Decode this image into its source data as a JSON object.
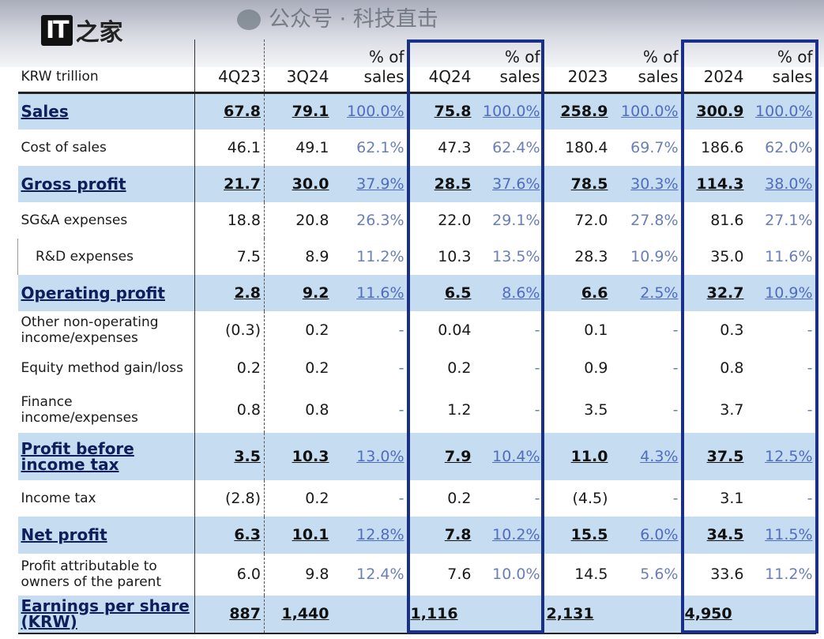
{
  "logo": {
    "text_latin": "IT",
    "text_cjk": "之家"
  },
  "unit_label": "KRW trillion",
  "columns": [
    "4Q23",
    "3Q24",
    "% of sales",
    "4Q24",
    "% of sales",
    "2023",
    "% of sales",
    "2024",
    "% of sales"
  ],
  "rows": [
    {
      "label": "Sales",
      "hl": true,
      "v": [
        "67.8",
        "79.1",
        "100.0%",
        "75.8",
        "100.0%",
        "258.9",
        "100.0%",
        "300.9",
        "100.0%"
      ]
    },
    {
      "label": "Cost of sales",
      "v": [
        "46.1",
        "49.1",
        "62.1%",
        "47.3",
        "62.4%",
        "180.4",
        "69.7%",
        "186.6",
        "62.0%"
      ]
    },
    {
      "label": "Gross profit",
      "hl": true,
      "v": [
        "21.7",
        "30.0",
        "37.9%",
        "28.5",
        "37.6%",
        "78.5",
        "30.3%",
        "114.3",
        "38.0%"
      ]
    },
    {
      "label": "SG&A expenses",
      "v": [
        "18.8",
        "20.8",
        "26.3%",
        "22.0",
        "29.1%",
        "72.0",
        "27.8%",
        "81.6",
        "27.1%"
      ]
    },
    {
      "label": "R&D expenses",
      "indent": true,
      "v": [
        "7.5",
        "8.9",
        "11.2%",
        "10.3",
        "13.5%",
        "28.3",
        "10.9%",
        "35.0",
        "11.6%"
      ]
    },
    {
      "label": "Operating profit",
      "hl": true,
      "v": [
        "2.8",
        "9.2",
        "11.6%",
        "6.5",
        "8.6%",
        "6.6",
        "2.5%",
        "32.7",
        "10.9%"
      ]
    },
    {
      "label": "Other non-operating income/expenses",
      "v": [
        "(0.3)",
        "0.2",
        "-",
        "0.04",
        "-",
        "0.1",
        "-",
        "0.3",
        "-"
      ]
    },
    {
      "label": "Equity method gain/loss",
      "v": [
        "0.2",
        "0.2",
        "-",
        "0.2",
        "-",
        "0.9",
        "-",
        "0.8",
        "-"
      ]
    },
    {
      "label": "Finance income/expenses",
      "v": [
        "0.8",
        "0.8",
        "-",
        "1.2",
        "-",
        "3.5",
        "-",
        "3.7",
        "-"
      ]
    },
    {
      "label": "Profit before income tax",
      "hl": true,
      "v": [
        "3.5",
        "10.3",
        "13.0%",
        "7.9",
        "10.4%",
        "11.0",
        "4.3%",
        "37.5",
        "12.5%"
      ]
    },
    {
      "label": "Income tax",
      "v": [
        "(2.8)",
        "0.2",
        "-",
        "0.2",
        "-",
        "(4.5)",
        "-",
        "3.1",
        "-"
      ]
    },
    {
      "label": "Net profit",
      "hl": true,
      "v": [
        "6.3",
        "10.1",
        "12.8%",
        "7.8",
        "10.2%",
        "15.5",
        "6.0%",
        "34.5",
        "11.5%"
      ]
    },
    {
      "label": "Profit attributable to owners of the parent",
      "v": [
        "6.0",
        "9.8",
        "12.4%",
        "7.6",
        "10.0%",
        "14.5",
        "5.6%",
        "33.6",
        "11.2%"
      ]
    },
    {
      "label": "Earnings per share (KRW)",
      "hl": true,
      "v": [
        "887",
        "1,440",
        "",
        "1,116",
        "",
        "2,131",
        "",
        "4,950",
        ""
      ]
    }
  ],
  "watermark": "公众号 · 科技直击",
  "colors": {
    "highlight": "#c6dcf1",
    "box": "#1a2f8a",
    "percent": "#6a7fb8"
  }
}
